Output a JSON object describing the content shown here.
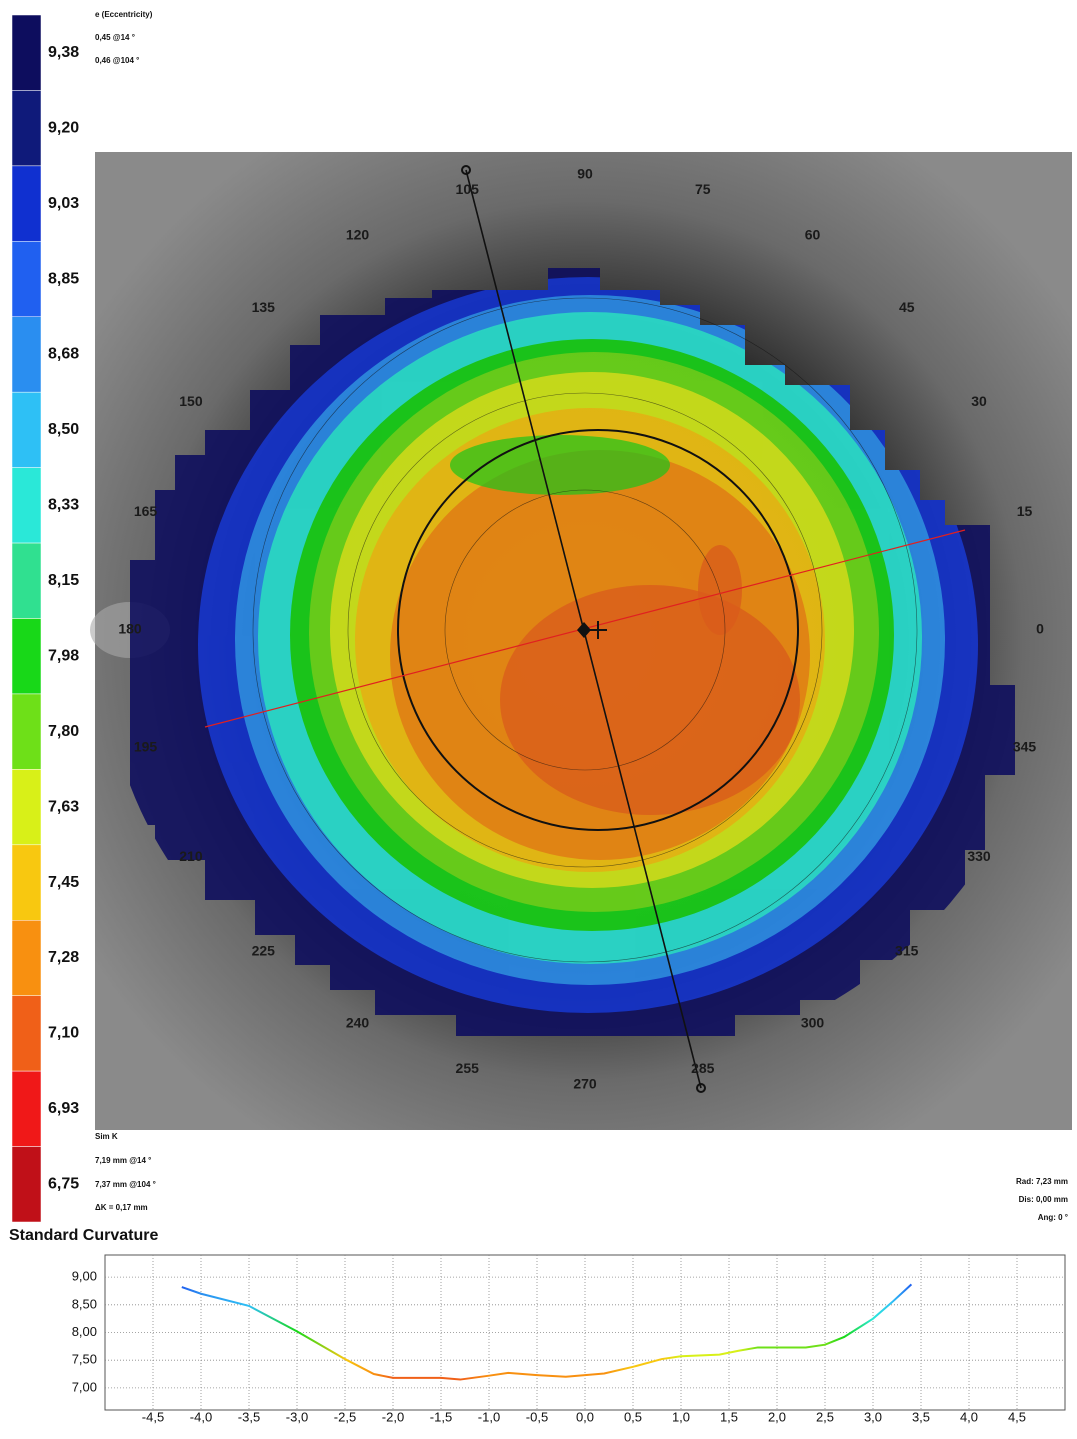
{
  "header": {
    "title": "e (Eccentricity)",
    "lines": [
      "0,45 @14 °",
      "0,46 @104 °"
    ]
  },
  "color_scale": {
    "levels": [
      {
        "value": 9.38,
        "label": "9,38",
        "color": "#0d0d5e"
      },
      {
        "value": 9.2,
        "label": "9,20",
        "color": "#0f1a7a"
      },
      {
        "value": 9.03,
        "label": "9,03",
        "color": "#1030d0"
      },
      {
        "value": 8.85,
        "label": "8,85",
        "color": "#2060f0"
      },
      {
        "value": 8.68,
        "label": "8,68",
        "color": "#2a8ef0"
      },
      {
        "value": 8.5,
        "label": "8,50",
        "color": "#2ec0f5"
      },
      {
        "value": 8.33,
        "label": "8,33",
        "color": "#2ae8d8"
      },
      {
        "value": 8.15,
        "label": "8,15",
        "color": "#30e090"
      },
      {
        "value": 7.98,
        "label": "7,98",
        "color": "#18d818"
      },
      {
        "value": 7.8,
        "label": "7,80",
        "color": "#6ee018"
      },
      {
        "value": 7.63,
        "label": "7,63",
        "color": "#d8f018"
      },
      {
        "value": 7.45,
        "label": "7,45",
        "color": "#f8c810"
      },
      {
        "value": 7.28,
        "label": "7,28",
        "color": "#f89010"
      },
      {
        "value": 7.1,
        "label": "7,10",
        "color": "#f06018"
      },
      {
        "value": 6.93,
        "label": "6,93",
        "color": "#f01818"
      },
      {
        "value": 6.75,
        "label": "6,75",
        "color": "#c01018"
      }
    ]
  },
  "map": {
    "angles": [
      0,
      15,
      30,
      45,
      60,
      75,
      90,
      105,
      120,
      135,
      150,
      165,
      180,
      195,
      210,
      225,
      240,
      255,
      270,
      285,
      300,
      315,
      330,
      345
    ]
  },
  "sim_k": {
    "title": "Sim K",
    "lines": [
      "7,19 mm @14 °",
      "7,37 mm @104 °",
      "ΔK = 0,17 mm"
    ]
  },
  "cursor": {
    "lines": [
      "Rad: 7,23 mm",
      "Dis: 0,00 mm",
      "Ang: 0 °"
    ]
  },
  "chart_data": {
    "type": "line",
    "title": "Standard Curvature",
    "x": [
      -4.2,
      -4.0,
      -3.5,
      -3.0,
      -2.5,
      -2.2,
      -2.0,
      -1.5,
      -1.3,
      -1.0,
      -0.8,
      -0.5,
      -0.2,
      0.2,
      0.5,
      0.8,
      1.0,
      1.4,
      1.6,
      1.8,
      2.0,
      2.3,
      2.5,
      2.7,
      3.0,
      3.2,
      3.4
    ],
    "series": [
      {
        "values": [
          8.82,
          8.7,
          8.48,
          8.02,
          7.52,
          7.25,
          7.18,
          7.18,
          7.15,
          7.22,
          7.27,
          7.23,
          7.2,
          7.26,
          7.38,
          7.52,
          7.57,
          7.6,
          7.67,
          7.73,
          7.73,
          7.73,
          7.78,
          7.92,
          8.25,
          8.55,
          8.87
        ]
      }
    ],
    "xlim": [
      -5,
      5
    ],
    "xticks": [
      {
        "value": -4.5,
        "label": "-4,5"
      },
      {
        "value": -4,
        "label": "-4,0"
      },
      {
        "value": -3.5,
        "label": "-3,5"
      },
      {
        "value": -3,
        "label": "-3,0"
      },
      {
        "value": -2.5,
        "label": "-2,5"
      },
      {
        "value": -2,
        "label": "-2,0"
      },
      {
        "value": -1.5,
        "label": "-1,5"
      },
      {
        "value": -1,
        "label": "-1,0"
      },
      {
        "value": -0.5,
        "label": "-0,5"
      },
      {
        "value": 0,
        "label": "0,0"
      },
      {
        "value": 0.5,
        "label": "0,5"
      },
      {
        "value": 1,
        "label": "1,0"
      },
      {
        "value": 1.5,
        "label": "1,5"
      },
      {
        "value": 2,
        "label": "2,0"
      },
      {
        "value": 2.5,
        "label": "2,5"
      },
      {
        "value": 3,
        "label": "3,0"
      },
      {
        "value": 3.5,
        "label": "3,5"
      },
      {
        "value": 4,
        "label": "4,0"
      },
      {
        "value": 4.5,
        "label": "4,5"
      }
    ],
    "ylim": [
      6.6,
      9.4
    ],
    "yticks": [
      {
        "value": 9,
        "label": "9,00"
      },
      {
        "value": 8.5,
        "label": "8,50"
      },
      {
        "value": 8,
        "label": "8,00"
      },
      {
        "value": 7.5,
        "label": "7,50"
      },
      {
        "value": 7,
        "label": "7,00"
      }
    ],
    "grid": true
  }
}
